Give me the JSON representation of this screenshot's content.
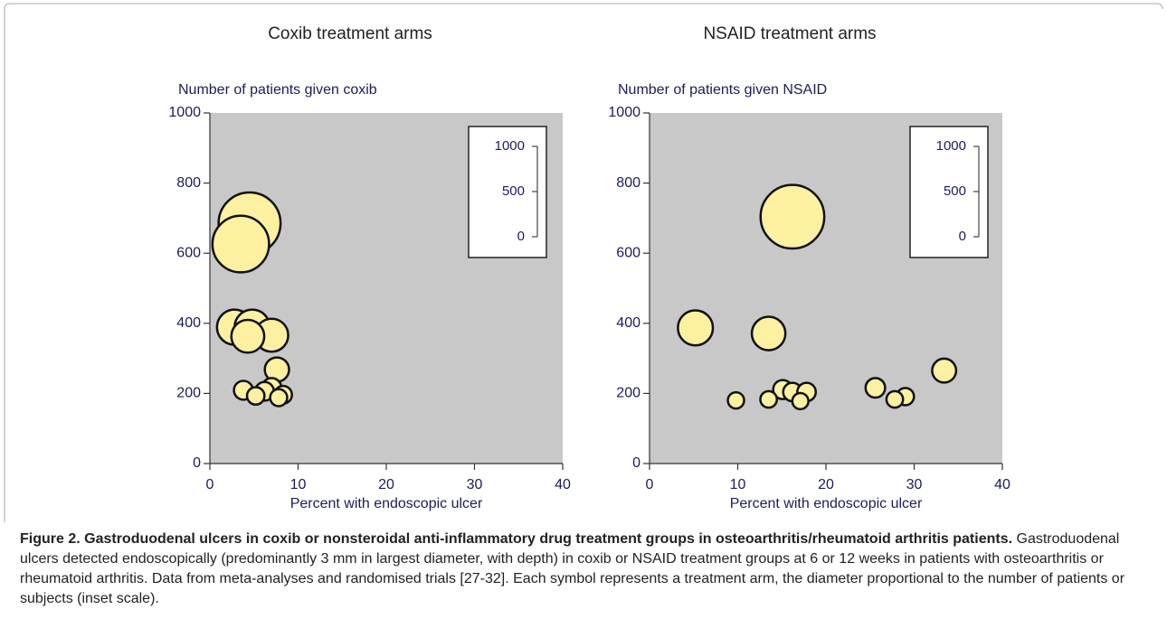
{
  "chart_data": [
    {
      "type": "bubble",
      "title": "Coxib treatment arms",
      "y_label": "Number of patients given coxib",
      "x_label": "Percent with endoscopic ulcer",
      "x": [
        4.5,
        3.5,
        2.8,
        4.8,
        4.3,
        7,
        7.6,
        3.8,
        5.2,
        6.2,
        7,
        7.8,
        8.3
      ],
      "values": [
        685,
        626,
        389,
        389,
        363,
        366,
        268,
        209,
        193,
        206,
        216,
        188,
        196
      ],
      "color": "#fdf0a0",
      "background": "#c8c8c8",
      "xlim": [
        0,
        40
      ],
      "xticks": [
        0,
        10,
        20,
        30,
        40
      ],
      "ylim": [
        0,
        1000
      ],
      "yticks": [
        0,
        200,
        400,
        600,
        800,
        1000
      ],
      "size_ticks": [
        1000,
        500,
        0
      ]
    },
    {
      "type": "bubble",
      "title": "NSAID treatment arms",
      "y_label": "Number of patients given NSAID",
      "x_label": "Percent with endoscopic ulcer",
      "x": [
        16.2,
        5.2,
        13.5,
        9.8,
        13.5,
        15.1,
        16.2,
        17.1,
        17.8,
        25.6,
        27.8,
        29,
        33.4
      ],
      "values": [
        704,
        387,
        371,
        180,
        183,
        211,
        204,
        178,
        204,
        216,
        183,
        191,
        265
      ],
      "color": "#fdf0a0",
      "background": "#c8c8c8",
      "xlim": [
        0,
        40
      ],
      "xticks": [
        0,
        10,
        20,
        30,
        40
      ],
      "ylim": [
        0,
        1000
      ],
      "yticks": [
        0,
        200,
        400,
        600,
        800,
        1000
      ],
      "size_ticks": [
        1000,
        500,
        0
      ]
    }
  ],
  "caption": {
    "title": "Figure 2. Gastroduodenal ulcers in coxib or nonsteroidal anti-inflammatory drug treatment groups in osteoarthritis/rheumatoid arthritis patients.",
    "text": "Gastroduodenal ulcers detected endoscopically (predominantly 3 mm in largest diameter, with depth) in coxib or NSAID treatment groups at 6 or 12 weeks in patients with osteoarthritis or rheumatoid arthritis. Data from meta-analyses and randomised trials [27-32]. Each symbol represents a treatment arm, the diameter proportional to the number of patients or subjects (inset scale)."
  }
}
